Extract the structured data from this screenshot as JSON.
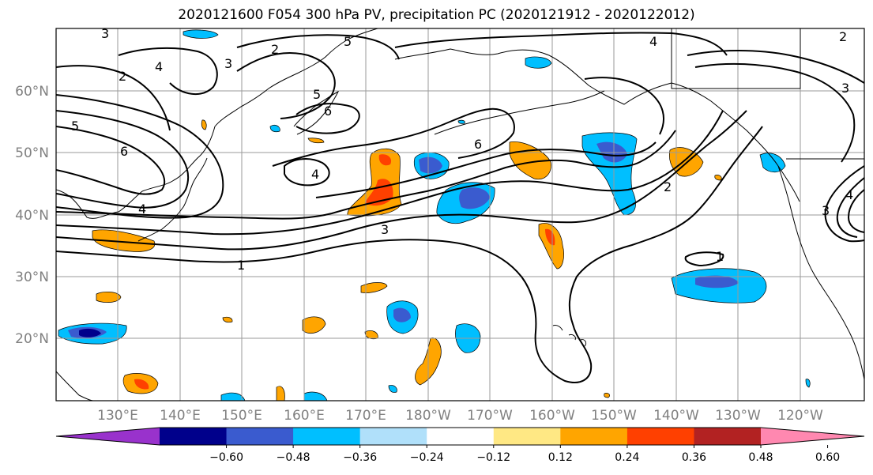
{
  "title": "2020121600 F054 300 hPa PV, precipitation PC (2020121912 - 2020122012)",
  "lat_labels": [
    "60°N",
    "50°N",
    "40°N",
    "30°N",
    "20°N"
  ],
  "lon_labels": [
    "130°E",
    "140°E",
    "150°E",
    "160°E",
    "170°E",
    "180°W",
    "170°W",
    "160°W",
    "150°W",
    "140°W",
    "130°W",
    "120°W"
  ],
  "colorbar": {
    "tick_labels": [
      "−0.60",
      "−0.48",
      "−0.36",
      "−0.24",
      "−0.12",
      "0.12",
      "0.24",
      "0.36",
      "0.48",
      "0.60"
    ],
    "colors": [
      "#9932cc",
      "#00008b",
      "#3a5bcf",
      "#00bfff",
      "#b0e0fa",
      "#ffffff",
      "#ffe884",
      "#ffa500",
      "#ff4000",
      "#b22222",
      "#ff88b0"
    ]
  },
  "pv_contour_labels": [
    "3",
    "5",
    "2",
    "4",
    "2",
    "3",
    "5",
    "6",
    "4",
    "6",
    "6",
    "4",
    "5",
    "4",
    "3",
    "2",
    "1",
    "1",
    "2",
    "3",
    "4",
    "3"
  ],
  "colors": {
    "contour": "#000000",
    "grid": "#9a9a9a",
    "coast": "#000000"
  }
}
